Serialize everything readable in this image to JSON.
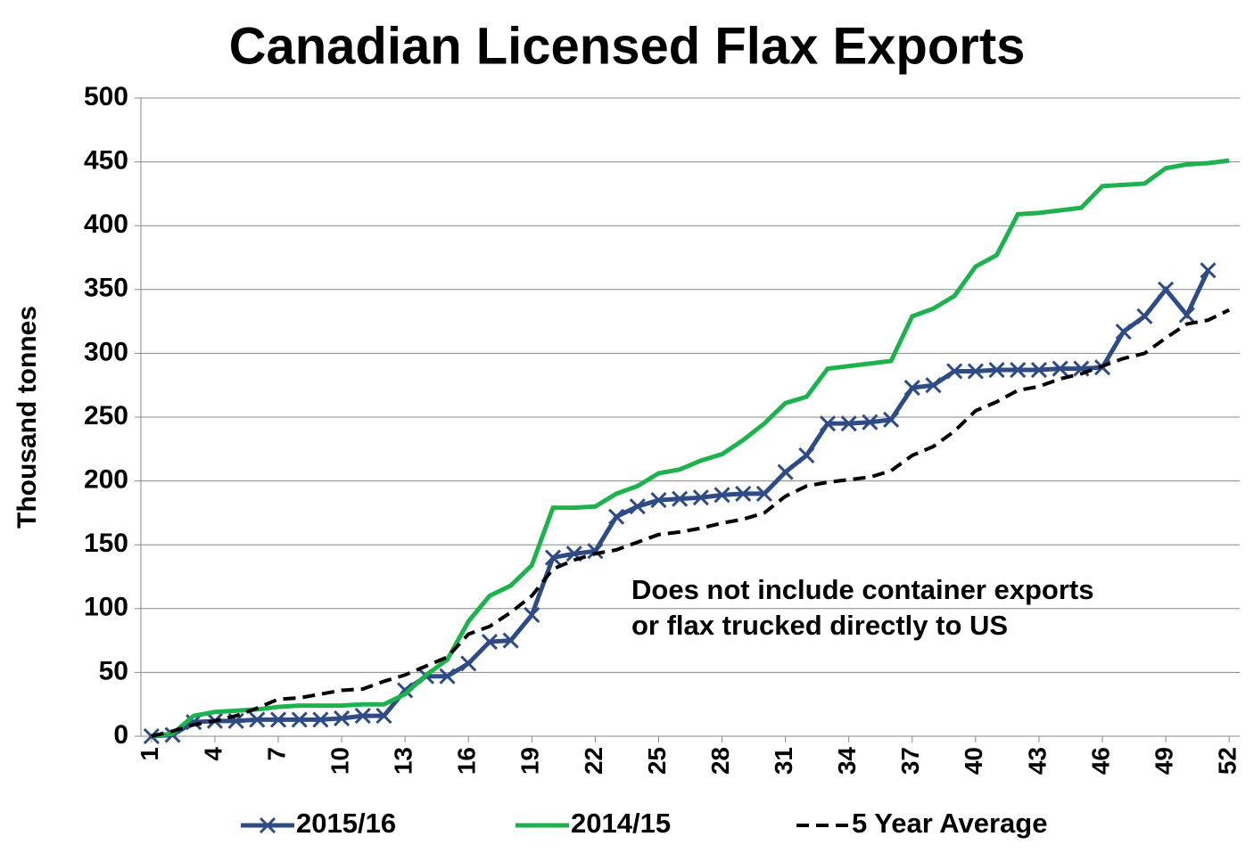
{
  "chart_data": {
    "type": "line",
    "title": "Canadian Licensed Flax Exports",
    "y_label": "Thousand tonnes",
    "annotation": [
      "Does not include container exports",
      "or flax trucked directly to US"
    ],
    "x": [
      1,
      2,
      3,
      4,
      5,
      6,
      7,
      8,
      9,
      10,
      11,
      12,
      13,
      14,
      15,
      16,
      17,
      18,
      19,
      20,
      21,
      22,
      23,
      24,
      25,
      26,
      27,
      28,
      29,
      30,
      31,
      32,
      33,
      34,
      35,
      36,
      37,
      38,
      39,
      40,
      41,
      42,
      43,
      44,
      45,
      46,
      47,
      48,
      49,
      50,
      51,
      52
    ],
    "xlim": [
      0.5,
      52.5
    ],
    "xticks": [
      1,
      4,
      7,
      10,
      13,
      16,
      19,
      22,
      25,
      28,
      31,
      34,
      37,
      40,
      43,
      46,
      49,
      52
    ],
    "ylim": [
      0,
      500
    ],
    "yticks": [
      0,
      50,
      100,
      150,
      200,
      250,
      300,
      350,
      400,
      450,
      500
    ],
    "grid": true,
    "legend": "bottom",
    "series": [
      {
        "name": "2015/16",
        "color": "#2e4b85",
        "marker": "x",
        "dash": "solid",
        "values": [
          0,
          1,
          11,
          12,
          12,
          13,
          13,
          13,
          13,
          14,
          16,
          16,
          36,
          47,
          47,
          57,
          74,
          75,
          95,
          140,
          143,
          145,
          172,
          180,
          185,
          186,
          187,
          189,
          190,
          190,
          207,
          220,
          245,
          245,
          246,
          248,
          273,
          275,
          286,
          286,
          287,
          287,
          287,
          288,
          288,
          289,
          317,
          329,
          350,
          330,
          365,
          null
        ]
      },
      {
        "name": "2014/15",
        "color": "#1db24e",
        "marker": "none",
        "dash": "solid",
        "values": [
          0,
          2,
          16,
          19,
          20,
          21,
          23,
          24,
          24,
          24,
          25,
          25,
          33,
          48,
          60,
          90,
          110,
          118,
          134,
          179,
          179,
          180,
          190,
          196,
          206,
          209,
          216,
          221,
          232,
          245,
          261,
          266,
          288,
          290,
          292,
          294,
          329,
          335,
          345,
          368,
          377,
          409,
          410,
          412,
          414,
          431,
          432,
          433,
          445,
          448,
          449,
          451
        ]
      },
      {
        "name": "5 Year Average",
        "color": "#000000",
        "marker": "none",
        "dash": "dashed",
        "values": [
          0,
          4,
          9,
          12,
          16,
          22,
          29,
          30,
          33,
          36,
          37,
          43,
          48,
          55,
          62,
          80,
          86,
          97,
          110,
          131,
          138,
          143,
          146,
          152,
          158,
          160,
          163,
          167,
          170,
          175,
          188,
          196,
          199,
          201,
          203,
          208,
          220,
          227,
          239,
          255,
          262,
          271,
          274,
          280,
          284,
          290,
          296,
          300,
          312,
          323,
          326,
          334
        ]
      }
    ]
  }
}
